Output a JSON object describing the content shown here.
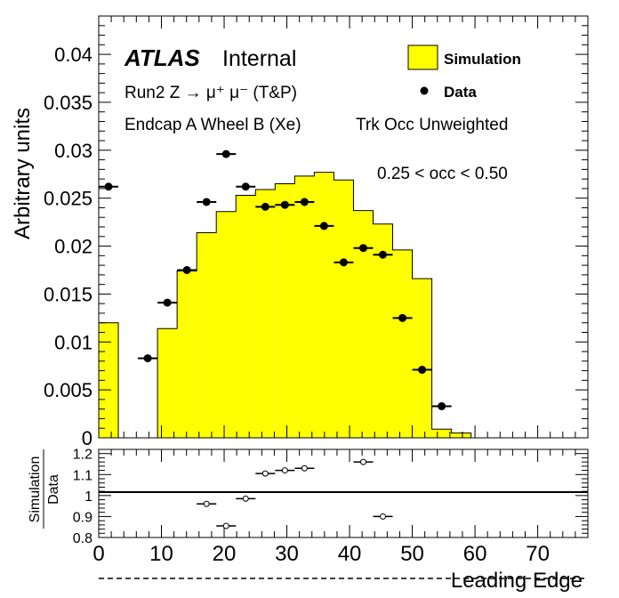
{
  "chart_data": [
    {
      "type": "histogram",
      "ylabel": "Arbitrary units",
      "xlim": [
        0,
        78
      ],
      "ylim": [
        0,
        0.044
      ],
      "yticks": [
        0,
        0.005,
        0.01,
        0.015,
        0.02,
        0.025,
        0.03,
        0.035,
        0.04
      ],
      "ytick_labels": [
        "0",
        "0.005",
        "0.01",
        "0.015",
        "0.02",
        "0.025",
        "0.03",
        "0.035",
        "0.04"
      ],
      "annotations": {
        "atlas": "ATLAS",
        "internal": "Internal",
        "run": "Run2 Z → μ⁺ μ⁻ (T&P)",
        "region": "Endcap A Wheel B (Xe)",
        "weighting": "Trk Occ Unweighted",
        "occ_range": "0.25 < occ < 0.50"
      },
      "legend": {
        "position": "top-right",
        "simulation_label": "Simulation",
        "data_label": "Data"
      },
      "simulation": {
        "name": "Simulation",
        "color": "#ffff00",
        "bin_edges": [
          0,
          3.125,
          6.25,
          9.375,
          12.5,
          15.625,
          18.75,
          21.875,
          25,
          28.125,
          31.25,
          34.375,
          37.5,
          40.625,
          43.75,
          46.875,
          50,
          53.125,
          56.25,
          59.375,
          62.5,
          65.625,
          68.75,
          71.875,
          75,
          78.125
        ],
        "values": [
          0.012,
          0,
          0,
          0.0114,
          0.0174,
          0.0214,
          0.0236,
          0.0253,
          0.0259,
          0.0265,
          0.0273,
          0.0277,
          0.0269,
          0.0237,
          0.0223,
          0.0196,
          0.0166,
          0.0009,
          0.0005,
          0,
          0,
          0,
          0,
          0,
          0
        ]
      },
      "data": {
        "name": "Data",
        "x": [
          1.5625,
          7.8125,
          10.9375,
          14.0625,
          17.1875,
          20.3125,
          23.4375,
          26.5625,
          29.6875,
          32.8125,
          35.9375,
          39.0625,
          42.1875,
          45.3125,
          48.4375,
          51.5625,
          54.6875
        ],
        "y": [
          0.0262,
          0.0083,
          0.0141,
          0.0175,
          0.0246,
          0.0296,
          0.0262,
          0.0241,
          0.0243,
          0.0246,
          0.0221,
          0.0183,
          0.0198,
          0.0191,
          0.0125,
          0.0071,
          0.0033
        ],
        "xerr": 1.5625
      }
    },
    {
      "type": "scatter",
      "ylabel_top": "Simulation",
      "ylabel_bottom": "Data",
      "xlabel": "Leading Edge",
      "xlim": [
        0,
        78
      ],
      "ylim": [
        0.8,
        1.22
      ],
      "reference_line": 1,
      "yticks": [
        0.8,
        0.9,
        1,
        1.1,
        1.2
      ],
      "ytick_labels": [
        "0.8",
        "0.9",
        "1",
        "1.1",
        "1.2"
      ],
      "xticks": [
        0,
        10,
        20,
        30,
        40,
        50,
        60,
        70
      ],
      "xtick_labels": [
        "0",
        "10",
        "20",
        "30",
        "40",
        "50",
        "60",
        "70"
      ],
      "ratio": {
        "x": [
          17.1875,
          20.3125,
          23.4375,
          26.5625,
          29.6875,
          32.8125,
          42.1875,
          45.3125
        ],
        "y": [
          0.96,
          0.855,
          0.985,
          1.105,
          1.12,
          1.13,
          1.16,
          0.9
        ],
        "xerr": 1.5625
      }
    }
  ]
}
